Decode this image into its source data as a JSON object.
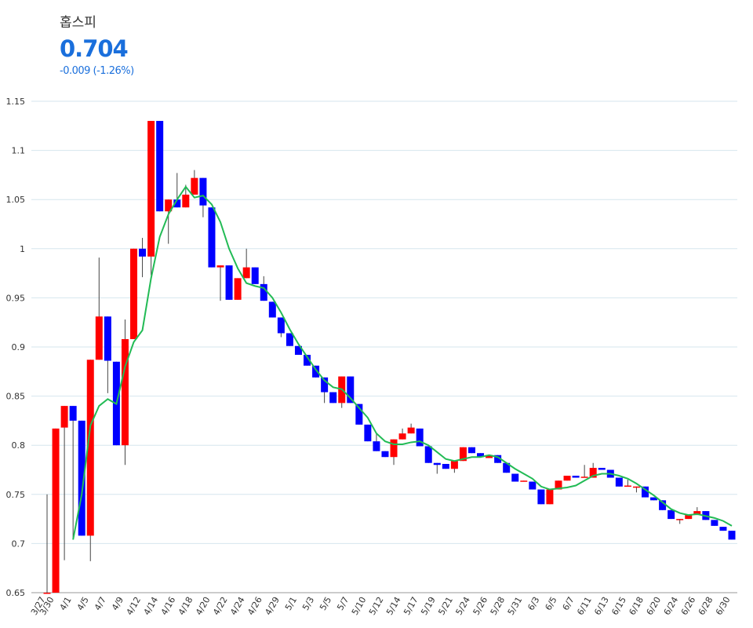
{
  "header": {
    "name": "홉스피",
    "price": "0.704",
    "change": "-0.009 (-1.26%)"
  },
  "chart_data": {
    "type": "candlestick",
    "categories": [
      "3/27",
      "3/30",
      null,
      "4/1",
      null,
      "4/5",
      null,
      "4/7",
      null,
      "4/9",
      null,
      "4/12",
      null,
      "4/14",
      null,
      "4/16",
      null,
      "4/18",
      null,
      "4/20",
      null,
      "4/22",
      null,
      "4/24",
      null,
      "4/26",
      null,
      "4/29",
      null,
      "5/1",
      null,
      "5/3",
      null,
      "5/5",
      null,
      "5/7",
      null,
      "5/10",
      null,
      "5/12",
      null,
      "5/14",
      null,
      "5/17",
      null,
      "5/19",
      null,
      "5/21",
      null,
      "5/24",
      null,
      "5/26",
      null,
      "5/28",
      null,
      "5/31",
      null,
      "6/3",
      null,
      "6/5",
      null,
      "6/7",
      null,
      "6/11",
      null,
      "6/13",
      null,
      "6/15",
      null,
      "6/18",
      null,
      "6/20",
      null,
      "6/24",
      null,
      "6/26",
      null,
      "6/28",
      null,
      "6/30"
    ],
    "open": [
      0.65,
      0.64,
      0.818,
      0.84,
      0.825,
      0.708,
      0.887,
      0.931,
      0.885,
      0.8,
      0.908,
      1.0,
      0.992,
      1.13,
      1.038,
      1.05,
      1.042,
      1.055,
      1.072,
      1.042,
      0.981,
      0.983,
      0.948,
      0.97,
      0.981,
      0.964,
      0.946,
      0.93,
      0.914,
      0.901,
      0.892,
      0.881,
      0.869,
      0.854,
      0.843,
      0.87,
      0.842,
      0.821,
      0.804,
      0.794,
      0.788,
      0.806,
      0.812,
      0.817,
      0.799,
      0.782,
      0.781,
      0.776,
      0.784,
      0.798,
      0.792,
      0.787,
      0.79,
      0.782,
      0.771,
      0.763,
      0.763,
      0.755,
      0.74,
      0.755,
      0.764,
      0.769,
      0.767,
      0.767,
      0.777,
      0.775,
      0.767,
      0.758,
      0.757,
      0.758,
      0.747,
      0.744,
      0.734,
      0.724,
      0.725,
      0.729,
      0.733,
      0.724,
      0.717,
      0.713
    ],
    "high": [
      0.75,
      0.817,
      0.84,
      0.84,
      0.825,
      0.887,
      0.991,
      0.931,
      0.885,
      0.928,
      1.0,
      1.011,
      1.13,
      1.13,
      1.05,
      1.077,
      1.065,
      1.08,
      1.072,
      1.042,
      0.983,
      0.983,
      0.97,
      1.0,
      0.981,
      0.972,
      0.946,
      0.93,
      0.914,
      0.901,
      0.892,
      0.881,
      0.869,
      0.854,
      0.87,
      0.87,
      0.842,
      0.821,
      0.813,
      0.794,
      0.806,
      0.817,
      0.822,
      0.817,
      0.799,
      0.782,
      0.781,
      0.784,
      0.798,
      0.798,
      0.792,
      0.79,
      0.79,
      0.782,
      0.771,
      0.764,
      0.763,
      0.755,
      0.755,
      0.764,
      0.769,
      0.769,
      0.78,
      0.782,
      0.777,
      0.775,
      0.767,
      0.765,
      0.758,
      0.758,
      0.747,
      0.744,
      0.734,
      0.725,
      0.729,
      0.737,
      0.733,
      0.724,
      0.717,
      0.713
    ],
    "low": [
      0.65,
      0.63,
      0.683,
      0.704,
      0.708,
      0.682,
      0.887,
      0.853,
      0.8,
      0.78,
      0.908,
      0.971,
      0.973,
      1.038,
      1.005,
      1.042,
      1.042,
      1.055,
      1.032,
      0.981,
      0.947,
      0.948,
      0.948,
      0.97,
      0.964,
      0.947,
      0.93,
      0.91,
      0.901,
      0.892,
      0.881,
      0.869,
      0.843,
      0.843,
      0.838,
      0.843,
      0.821,
      0.804,
      0.794,
      0.788,
      0.78,
      0.806,
      0.812,
      0.799,
      0.782,
      0.771,
      0.776,
      0.772,
      0.784,
      0.792,
      0.788,
      0.787,
      0.782,
      0.772,
      0.763,
      0.763,
      0.755,
      0.74,
      0.74,
      0.755,
      0.764,
      0.767,
      0.767,
      0.767,
      0.775,
      0.767,
      0.758,
      0.758,
      0.752,
      0.747,
      0.744,
      0.734,
      0.725,
      0.72,
      0.725,
      0.729,
      0.724,
      0.718,
      0.713,
      0.704
    ],
    "close": [
      0.65,
      0.817,
      0.84,
      0.825,
      0.708,
      0.887,
      0.931,
      0.886,
      0.8,
      0.908,
      1.0,
      0.992,
      1.13,
      1.038,
      1.05,
      1.042,
      1.055,
      1.072,
      1.044,
      0.981,
      0.983,
      0.948,
      0.97,
      0.981,
      0.964,
      0.947,
      0.93,
      0.914,
      0.901,
      0.892,
      0.881,
      0.869,
      0.854,
      0.843,
      0.87,
      0.843,
      0.821,
      0.804,
      0.794,
      0.788,
      0.806,
      0.812,
      0.818,
      0.799,
      0.782,
      0.78,
      0.776,
      0.784,
      0.798,
      0.792,
      0.788,
      0.79,
      0.782,
      0.772,
      0.763,
      0.764,
      0.755,
      0.74,
      0.755,
      0.764,
      0.769,
      0.767,
      0.768,
      0.777,
      0.775,
      0.767,
      0.758,
      0.759,
      0.758,
      0.747,
      0.744,
      0.734,
      0.725,
      0.725,
      0.729,
      0.733,
      0.724,
      0.718,
      0.713,
      0.704
    ],
    "up_color": "#ff0000",
    "down_color": "#0000ff",
    "series": [
      {
        "color": "#22bb55",
        "values": [
          null,
          null,
          null,
          0.704,
          0.75,
          0.82,
          0.84,
          0.847,
          0.842,
          0.88,
          0.905,
          0.917,
          0.97,
          1.012,
          1.035,
          1.05,
          1.063,
          1.052,
          1.054,
          1.045,
          1.027,
          1.0,
          0.98,
          0.965,
          0.962,
          0.96,
          0.95,
          0.935,
          0.918,
          0.903,
          0.89,
          0.877,
          0.866,
          0.859,
          0.857,
          0.848,
          0.838,
          0.828,
          0.812,
          0.804,
          0.801,
          0.801,
          0.803,
          0.804,
          0.8,
          0.793,
          0.786,
          0.784,
          0.786,
          0.788,
          0.788,
          0.79,
          0.788,
          0.782,
          0.776,
          0.771,
          0.766,
          0.758,
          0.755,
          0.756,
          0.757,
          0.759,
          0.764,
          0.769,
          0.771,
          0.771,
          0.769,
          0.766,
          0.761,
          0.755,
          0.749,
          0.742,
          0.735,
          0.731,
          0.729,
          0.73,
          0.728,
          0.726,
          0.723,
          0.718
        ]
      }
    ],
    "ylim": [
      0.65,
      1.15
    ],
    "yticks": [
      0.65,
      0.7,
      0.75,
      0.8,
      0.85,
      0.9,
      0.95,
      1,
      1.05,
      1.1,
      1.15
    ],
    "grid": true
  }
}
